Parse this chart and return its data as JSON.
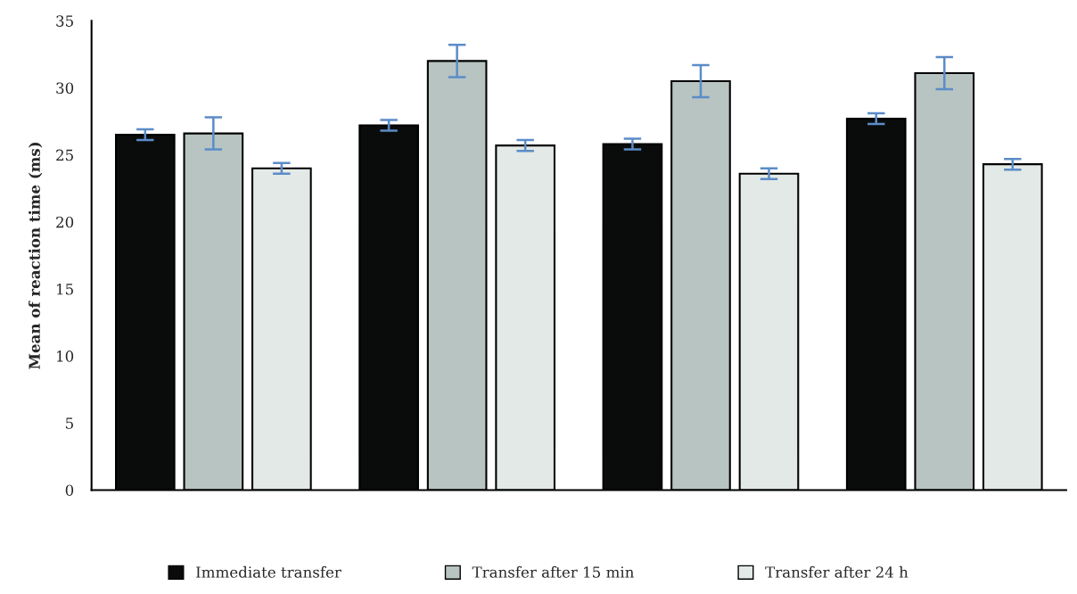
{
  "chart_data": {
    "type": "bar",
    "ylabel": "Mean of reaction time (ms)",
    "categories": [
      null,
      null,
      null,
      null
    ],
    "series": [
      {
        "name": "Immediate transfer",
        "color": "#0a0c0b",
        "values": [
          26.5,
          27.2,
          25.8,
          27.7
        ],
        "errors": [
          0.4,
          0.4,
          0.4,
          0.4
        ]
      },
      {
        "name": "Transfer after 15 min",
        "color": "#b7c4c2",
        "values": [
          26.6,
          32.0,
          30.5,
          31.1
        ],
        "errors": [
          1.2,
          1.2,
          1.2,
          1.2
        ]
      },
      {
        "name": "Transfer after 24 h",
        "color": "#e3e9e6",
        "values": [
          24.0,
          25.7,
          23.6,
          24.3
        ],
        "errors": [
          0.4,
          0.4,
          0.4,
          0.4
        ]
      }
    ],
    "ylim": [
      0,
      35
    ],
    "yticks": [
      0,
      5,
      10,
      15,
      20,
      25,
      30,
      35
    ],
    "grid": false,
    "legend": "bottom"
  }
}
